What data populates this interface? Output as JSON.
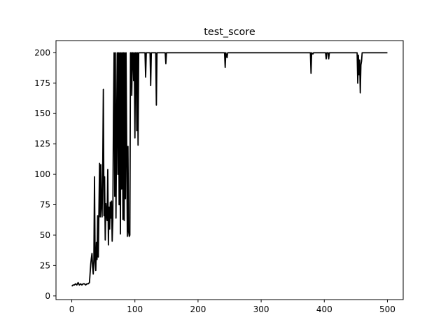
{
  "chart_data": {
    "type": "line",
    "title": "test_score",
    "xlabel": "",
    "ylabel": "",
    "xlim": [
      -25,
      525
    ],
    "ylim": [
      -3,
      210
    ],
    "grid": false,
    "legend": "none",
    "x_ticks": [
      0,
      100,
      200,
      300,
      400,
      500
    ],
    "y_ticks": [
      0,
      25,
      50,
      75,
      100,
      125,
      150,
      175,
      200
    ],
    "line_color": "#000000",
    "series": [
      {
        "points": [
          [
            0,
            8
          ],
          [
            2,
            9
          ],
          [
            4,
            9
          ],
          [
            6,
            10
          ],
          [
            8,
            9
          ],
          [
            10,
            11
          ],
          [
            12,
            9
          ],
          [
            14,
            10
          ],
          [
            16,
            9
          ],
          [
            18,
            10
          ],
          [
            20,
            10
          ],
          [
            22,
            9
          ],
          [
            24,
            10
          ],
          [
            26,
            10
          ],
          [
            28,
            11
          ],
          [
            30,
            26
          ],
          [
            31,
            31
          ],
          [
            32,
            35
          ],
          [
            33,
            24
          ],
          [
            34,
            18
          ],
          [
            35,
            30
          ],
          [
            36,
            98
          ],
          [
            37,
            28
          ],
          [
            38,
            21
          ],
          [
            39,
            44
          ],
          [
            40,
            30
          ],
          [
            41,
            66
          ],
          [
            42,
            32
          ],
          [
            43,
            70
          ],
          [
            44,
            109
          ],
          [
            45,
            65
          ],
          [
            46,
            108
          ],
          [
            47,
            73
          ],
          [
            48,
            65
          ],
          [
            49,
            103
          ],
          [
            50,
            170
          ],
          [
            51,
            66
          ],
          [
            52,
            98
          ],
          [
            53,
            46
          ],
          [
            54,
            76
          ],
          [
            55,
            68
          ],
          [
            56,
            62
          ],
          [
            57,
            104
          ],
          [
            58,
            42
          ],
          [
            59,
            73
          ],
          [
            60,
            55
          ],
          [
            61,
            77
          ],
          [
            62,
            64
          ],
          [
            63,
            78
          ],
          [
            64,
            45
          ],
          [
            65,
            62
          ],
          [
            66,
            149
          ],
          [
            67,
            200
          ],
          [
            68,
            82
          ],
          [
            69,
            200
          ],
          [
            70,
            64
          ],
          [
            71,
            138
          ],
          [
            72,
            200
          ],
          [
            73,
            100
          ],
          [
            74,
            200
          ],
          [
            75,
            75
          ],
          [
            76,
            200
          ],
          [
            77,
            51
          ],
          [
            78,
            200
          ],
          [
            79,
            88
          ],
          [
            80,
            200
          ],
          [
            81,
            63
          ],
          [
            82,
            200
          ],
          [
            83,
            62
          ],
          [
            84,
            200
          ],
          [
            85,
            80
          ],
          [
            86,
            200
          ],
          [
            87,
            122
          ],
          [
            88,
            49
          ],
          [
            89,
            123
          ],
          [
            90,
            53
          ],
          [
            91,
            49
          ],
          [
            92,
            50
          ],
          [
            93,
            200
          ],
          [
            94,
            200
          ],
          [
            95,
            165
          ],
          [
            96,
            200
          ],
          [
            97,
            200
          ],
          [
            98,
            177
          ],
          [
            99,
            200
          ],
          [
            100,
            130
          ],
          [
            101,
            200
          ],
          [
            102,
            200
          ],
          [
            103,
            136
          ],
          [
            104,
            200
          ],
          [
            105,
            124
          ],
          [
            106,
            200
          ],
          [
            108,
            200
          ],
          [
            112,
            200
          ],
          [
            116,
            200
          ],
          [
            117,
            180
          ],
          [
            118,
            200
          ],
          [
            124,
            200
          ],
          [
            125,
            173
          ],
          [
            126,
            200
          ],
          [
            133,
            200
          ],
          [
            134,
            157
          ],
          [
            135,
            200
          ],
          [
            148,
            200
          ],
          [
            149,
            191
          ],
          [
            150,
            200
          ],
          [
            160,
            200
          ],
          [
            240,
            200
          ],
          [
            242,
            200
          ],
          [
            243,
            188
          ],
          [
            244,
            200
          ],
          [
            246,
            196
          ],
          [
            247,
            200
          ],
          [
            250,
            200
          ],
          [
            300,
            200
          ],
          [
            378,
            200
          ],
          [
            379,
            183
          ],
          [
            380,
            200
          ],
          [
            382,
            199
          ],
          [
            383,
            200
          ],
          [
            400,
            200
          ],
          [
            402,
            200
          ],
          [
            403,
            195
          ],
          [
            404,
            200
          ],
          [
            406,
            200
          ],
          [
            407,
            195
          ],
          [
            408,
            200
          ],
          [
            450,
            200
          ],
          [
            452,
            200
          ],
          [
            453,
            175
          ],
          [
            454,
            198
          ],
          [
            455,
            182
          ],
          [
            456,
            194
          ],
          [
            457,
            167
          ],
          [
            458,
            190
          ],
          [
            459,
            193
          ],
          [
            460,
            200
          ],
          [
            500,
            200
          ]
        ]
      }
    ]
  }
}
